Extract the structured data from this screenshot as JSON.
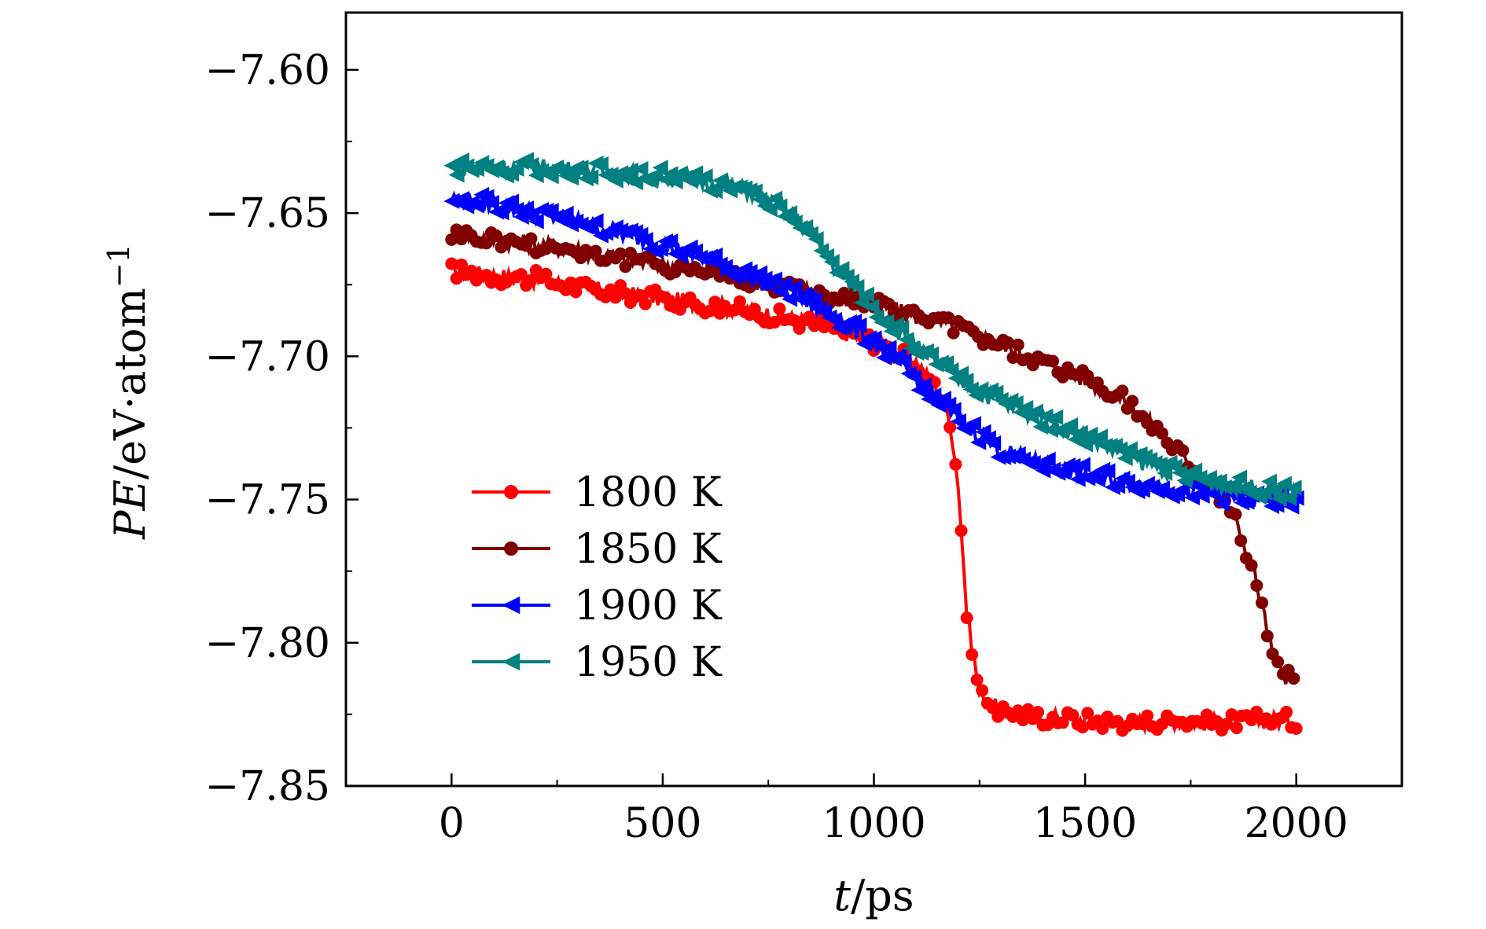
{
  "chart_data": {
    "type": "line",
    "title": "",
    "xlabel": "t/ps",
    "xlabel_parts": {
      "symbol": "t",
      "unit": "/ps"
    },
    "ylabel": "PE/eV·atom⁻¹",
    "ylabel_parts": {
      "symbol": "PE",
      "unit": "/eV·atom",
      "exponent": "−1"
    },
    "xlim": [
      -250,
      2250
    ],
    "ylim": [
      -7.85,
      -7.58
    ],
    "xticks": [
      0,
      500,
      1000,
      1500,
      2000
    ],
    "xtick_labels": [
      "0",
      "500",
      "1000",
      "1500",
      "2000"
    ],
    "yticks": [
      -7.85,
      -7.8,
      -7.75,
      -7.7,
      -7.65,
      -7.6
    ],
    "ytick_labels": [
      "−7.85",
      "−7.80",
      "−7.75",
      "−7.70",
      "−7.65",
      "−7.60"
    ],
    "grid": false,
    "legend_position": "lower-left",
    "series": [
      {
        "name": "1800 K",
        "color": "#ff0000",
        "marker": "circle",
        "x": [
          0,
          100,
          200,
          300,
          400,
          500,
          600,
          700,
          800,
          900,
          1000,
          1100,
          1150,
          1180,
          1200,
          1220,
          1250,
          1300,
          1400,
          1500,
          1600,
          1700,
          1800,
          1900,
          2000
        ],
        "y": [
          -7.67,
          -7.672,
          -7.673,
          -7.676,
          -7.678,
          -7.68,
          -7.682,
          -7.684,
          -7.687,
          -7.69,
          -7.695,
          -7.702,
          -7.712,
          -7.722,
          -7.745,
          -7.79,
          -7.818,
          -7.824,
          -7.826,
          -7.827,
          -7.828,
          -7.827,
          -7.828,
          -7.827,
          -7.827
        ]
      },
      {
        "name": "1850 K",
        "color": "#800000",
        "marker": "circle",
        "x": [
          0,
          100,
          200,
          300,
          400,
          500,
          600,
          700,
          800,
          900,
          1000,
          1100,
          1200,
          1300,
          1400,
          1500,
          1600,
          1700,
          1750,
          1800,
          1850,
          1900,
          1950,
          2000
        ],
        "y": [
          -7.657,
          -7.659,
          -7.661,
          -7.663,
          -7.666,
          -7.668,
          -7.67,
          -7.673,
          -7.676,
          -7.679,
          -7.682,
          -7.686,
          -7.69,
          -7.696,
          -7.702,
          -7.708,
          -7.716,
          -7.73,
          -7.738,
          -7.746,
          -7.755,
          -7.775,
          -7.808,
          -7.815
        ]
      },
      {
        "name": "1900 K",
        "color": "#0000ff",
        "marker": "triangle-left",
        "x": [
          0,
          100,
          200,
          300,
          400,
          500,
          600,
          700,
          800,
          900,
          1000,
          1100,
          1200,
          1300,
          1400,
          1500,
          1600,
          1700,
          1800,
          1900,
          2000
        ],
        "y": [
          -7.645,
          -7.647,
          -7.65,
          -7.653,
          -7.657,
          -7.661,
          -7.666,
          -7.672,
          -7.678,
          -7.686,
          -7.695,
          -7.708,
          -7.722,
          -7.733,
          -7.738,
          -7.741,
          -7.744,
          -7.746,
          -7.748,
          -7.75,
          -7.751
        ]
      },
      {
        "name": "1950 K",
        "color": "#008080",
        "marker": "triangle-left",
        "x": [
          0,
          100,
          200,
          300,
          400,
          500,
          600,
          700,
          800,
          850,
          900,
          1000,
          1100,
          1200,
          1300,
          1400,
          1500,
          1600,
          1700,
          1800,
          1900,
          2000
        ],
        "y": [
          -7.634,
          -7.634,
          -7.634,
          -7.635,
          -7.636,
          -7.637,
          -7.639,
          -7.642,
          -7.65,
          -7.657,
          -7.668,
          -7.683,
          -7.697,
          -7.708,
          -7.716,
          -7.722,
          -7.728,
          -7.735,
          -7.74,
          -7.744,
          -7.746,
          -7.748
        ]
      }
    ]
  }
}
